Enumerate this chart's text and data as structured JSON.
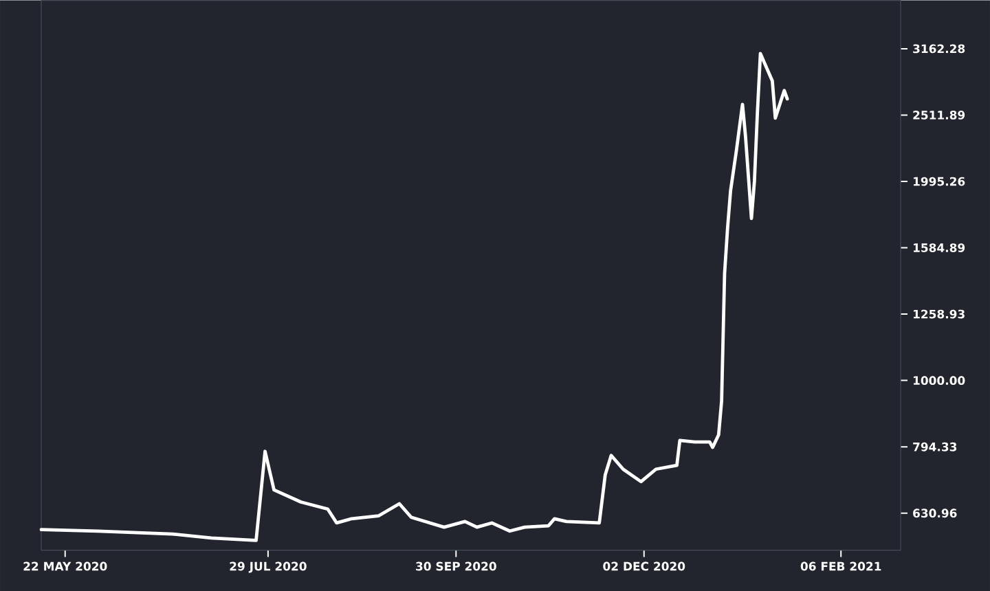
{
  "chart_data": {
    "type": "line",
    "color": "#ffffff",
    "log": "y",
    "x": [
      "2020-05-14",
      "2020-06-02",
      "2020-06-27",
      "2020-07-10",
      "2020-07-25",
      "2020-07-28",
      "2020-07-31",
      "2020-08-09",
      "2020-08-18",
      "2020-08-21",
      "2020-08-26",
      "2020-09-04",
      "2020-09-11",
      "2020-09-15",
      "2020-09-26",
      "2020-10-03",
      "2020-10-07",
      "2020-10-12",
      "2020-10-18",
      "2020-10-23",
      "2020-10-31",
      "2020-11-02",
      "2020-11-06",
      "2020-11-17",
      "2020-11-19",
      "2020-11-21",
      "2020-11-25",
      "2020-12-01",
      "2020-12-06",
      "2020-12-13",
      "2020-12-14",
      "2020-12-19",
      "2020-12-24",
      "2020-12-25",
      "2020-12-27",
      "2020-12-28",
      "2020-12-29",
      "2020-12-30",
      "2020-12-31",
      "2021-01-02",
      "2021-01-04",
      "2021-01-05",
      "2021-01-07",
      "2021-01-08",
      "2021-01-09",
      "2021-01-10",
      "2021-01-12",
      "2021-01-14",
      "2021-01-15",
      "2021-01-18",
      "2021-01-19"
    ],
    "values": [
      596,
      593,
      587,
      579,
      574,
      782,
      684,
      656,
      640,
      610,
      619,
      625,
      652,
      622,
      601,
      613,
      601,
      610,
      593,
      601,
      604,
      619,
      613,
      610,
      721,
      771,
      735,
      704,
      735,
      745,
      812,
      808,
      808,
      793,
      828,
      931,
      1450,
      1697,
      1931,
      2228,
      2607,
      2337,
      1755,
      1996,
      2534,
      3110,
      2965,
      2828,
      2486,
      2735,
      2657
    ],
    "xlim": [
      "2020-05-14",
      "2021-02-26"
    ],
    "ylim": [
      555,
      3740
    ],
    "xticks": [
      {
        "value": "2020-05-22",
        "label": "22 MAY 2020"
      },
      {
        "value": "2020-07-29",
        "label": "29 JUL 2020"
      },
      {
        "value": "2020-09-30",
        "label": "30 SEP 2020"
      },
      {
        "value": "2020-12-02",
        "label": "02 DEC 2020"
      },
      {
        "value": "2021-02-06",
        "label": "06 FEB 2021"
      }
    ],
    "yticks": [
      630.96,
      794.33,
      {
        "value": 1000,
        "label": "1000.00"
      },
      1258.93,
      1584.89,
      1995.26,
      2511.89,
      3162.28
    ]
  }
}
